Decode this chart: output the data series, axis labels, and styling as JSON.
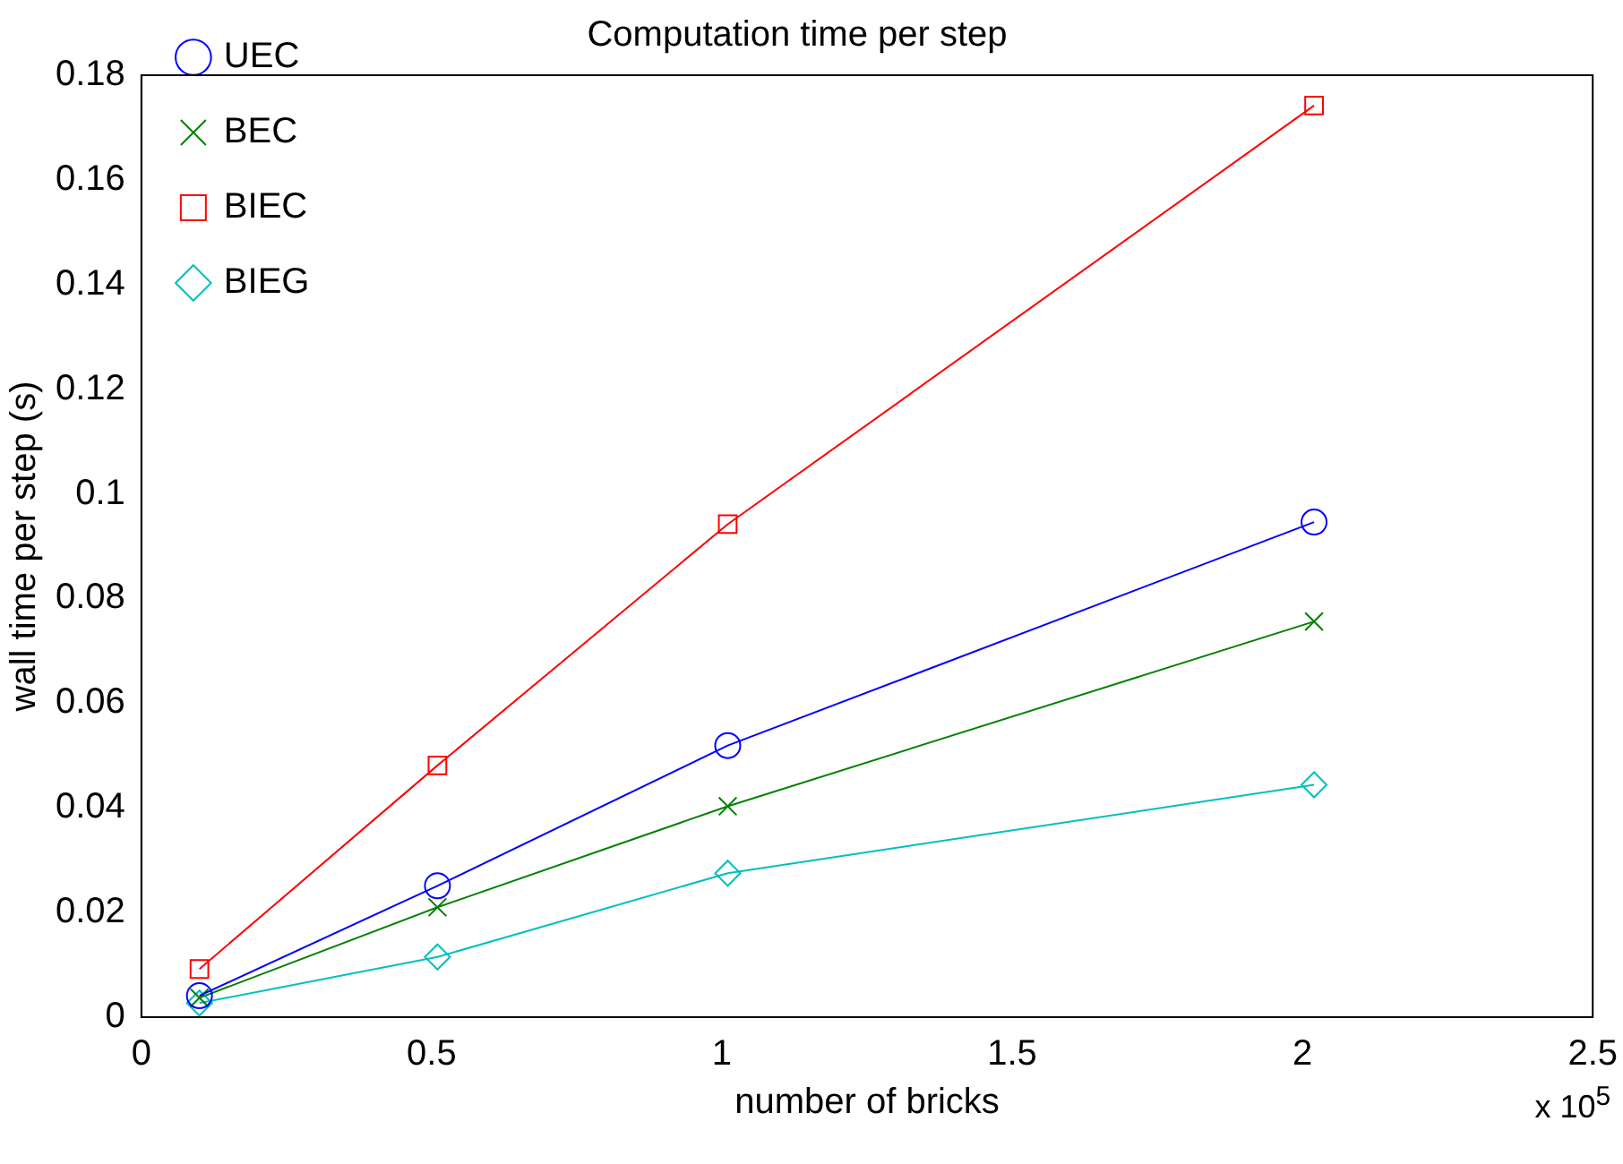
{
  "chart_data": {
    "type": "line",
    "title": "Computation time per step",
    "xlabel": "number of bricks",
    "ylabel": "wall time per step (s)",
    "annotations": [
      "x 10$^{5}$"
    ],
    "series": [
      {
        "name": "UEC",
        "color": "#0000ff",
        "marker": "circle",
        "x": [
          0.1,
          0.51,
          1.01,
          2.02
        ],
        "values": [
          0.0041,
          0.0251,
          0.0519,
          0.0946
        ]
      },
      {
        "name": "BEC",
        "color": "#008000",
        "marker": "cross",
        "x": [
          0.1,
          0.51,
          1.01,
          2.02
        ],
        "values": [
          0.0037,
          0.021,
          0.0403,
          0.0756
        ]
      },
      {
        "name": "BIEC",
        "color": "#ff0000",
        "marker": "square",
        "x": [
          0.1,
          0.51,
          1.01,
          2.02
        ],
        "values": [
          0.0092,
          0.0481,
          0.0942,
          0.1742
        ]
      },
      {
        "name": "BIEG",
        "color": "#00bfbf",
        "marker": "diamond",
        "x": [
          0.1,
          0.51,
          1.01,
          2.02
        ],
        "values": [
          0.0027,
          0.0115,
          0.0275,
          0.0444
        ]
      }
    ],
    "xlim": [
      0,
      2.5
    ],
    "xticks": [
      0,
      0.5,
      1,
      1.5,
      2,
      2.5
    ],
    "ylim": [
      0,
      0.18
    ],
    "yticks": [
      0,
      0.02,
      0.04,
      0.06,
      0.08,
      0.1,
      0.12,
      0.14,
      0.16,
      0.18
    ],
    "grid": false,
    "legend": "top left",
    "line_style": "solid"
  }
}
